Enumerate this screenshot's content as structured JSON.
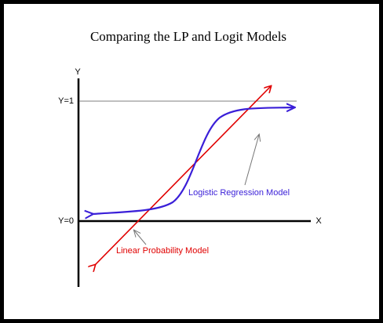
{
  "title": "Comparing the LP and Logit Models",
  "axes": {
    "y_label": "Y",
    "x_label": "X",
    "y_one": "Y=1",
    "y_zero": "Y=0"
  },
  "curves": {
    "logit": "Logistic Regression Model",
    "linear": "Linear Probability Model"
  }
}
